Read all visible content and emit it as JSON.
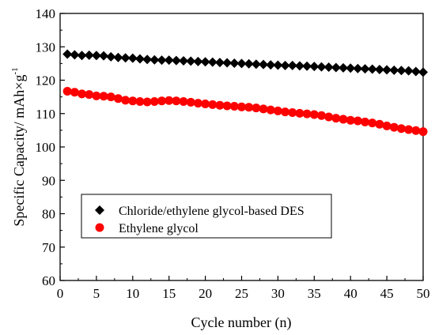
{
  "chart_data": {
    "type": "scatter",
    "xlabel": "Cycle number (n)",
    "ylabel_main": "Specific Capacity/ mAh×g",
    "ylabel_sup": "-1",
    "xlim": [
      0,
      50
    ],
    "ylim": [
      60,
      140
    ],
    "xticks": [
      0,
      5,
      10,
      15,
      20,
      25,
      30,
      35,
      40,
      45,
      50
    ],
    "yticks": [
      60,
      70,
      80,
      90,
      100,
      110,
      120,
      130,
      140
    ],
    "grid": false,
    "legend_position": "lower-left",
    "series": [
      {
        "name": "Chloride/ethylene glycol-based DES",
        "marker": "diamond",
        "color": "#000000",
        "x": [
          1,
          2,
          3,
          4,
          5,
          6,
          7,
          8,
          9,
          10,
          11,
          12,
          13,
          14,
          15,
          16,
          17,
          18,
          19,
          20,
          21,
          22,
          23,
          24,
          25,
          26,
          27,
          28,
          29,
          30,
          31,
          32,
          33,
          34,
          35,
          36,
          37,
          38,
          39,
          40,
          41,
          42,
          43,
          44,
          45,
          46,
          47,
          48,
          49,
          50
        ],
        "y": [
          127.8,
          127.6,
          127.4,
          127.5,
          127.4,
          127.3,
          127.0,
          126.8,
          126.7,
          126.6,
          126.4,
          126.2,
          126.1,
          126.0,
          126.0,
          125.9,
          125.8,
          125.7,
          125.6,
          125.5,
          125.4,
          125.3,
          125.2,
          125.1,
          125.0,
          124.9,
          124.8,
          124.7,
          124.6,
          124.5,
          124.4,
          124.4,
          124.3,
          124.2,
          124.1,
          124.0,
          123.9,
          123.8,
          123.7,
          123.6,
          123.5,
          123.4,
          123.3,
          123.2,
          123.1,
          123.0,
          122.9,
          122.8,
          122.6,
          122.4
        ]
      },
      {
        "name": "Ethylene glycol",
        "marker": "circle",
        "color": "#ff0000",
        "x": [
          1,
          2,
          3,
          4,
          5,
          6,
          7,
          8,
          9,
          10,
          11,
          12,
          13,
          14,
          15,
          16,
          17,
          18,
          19,
          20,
          21,
          22,
          23,
          24,
          25,
          26,
          27,
          28,
          29,
          30,
          31,
          32,
          33,
          34,
          35,
          36,
          37,
          38,
          39,
          40,
          41,
          42,
          43,
          44,
          45,
          46,
          47,
          48,
          49,
          50
        ],
        "y": [
          116.7,
          116.4,
          115.9,
          115.7,
          115.3,
          115.2,
          115.0,
          114.5,
          114.0,
          113.8,
          113.6,
          113.5,
          113.6,
          113.8,
          113.9,
          113.8,
          113.6,
          113.4,
          113.1,
          112.9,
          112.7,
          112.5,
          112.3,
          112.2,
          112.0,
          111.9,
          111.7,
          111.4,
          111.1,
          110.8,
          110.5,
          110.3,
          110.1,
          109.9,
          109.7,
          109.4,
          109.0,
          108.6,
          108.3,
          108.0,
          107.8,
          107.5,
          107.2,
          106.8,
          106.3,
          105.9,
          105.5,
          105.2,
          104.9,
          104.6
        ]
      }
    ]
  }
}
